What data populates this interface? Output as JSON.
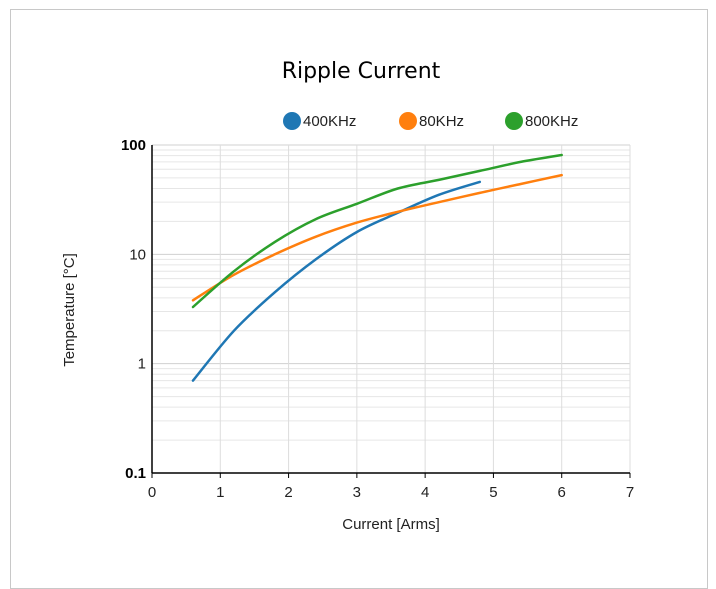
{
  "chart_data": {
    "type": "line",
    "title": "Ripple Current",
    "xlabel": "Current [Arms]",
    "ylabel": "Temperature [°C]",
    "xlim": [
      0,
      7
    ],
    "ylim": [
      0.1,
      100
    ],
    "yscale": "log",
    "grid": true,
    "legend_position": "top",
    "x_ticks": [
      "0",
      "1",
      "2",
      "3",
      "4",
      "5",
      "6",
      "7"
    ],
    "y_ticks": [
      "0.1",
      "1",
      "10",
      "100"
    ],
    "series": [
      {
        "name": "400KHz",
        "color": "#1f77b4",
        "points": [
          [
            0.6,
            0.7
          ],
          [
            1.2,
            2.0
          ],
          [
            1.8,
            4.5
          ],
          [
            2.4,
            9.0
          ],
          [
            3.0,
            16.0
          ],
          [
            3.6,
            24.0
          ],
          [
            4.2,
            35.0
          ],
          [
            4.8,
            46.0
          ]
        ]
      },
      {
        "name": "80KHz",
        "color": "#ff7f0e",
        "points": [
          [
            0.6,
            3.8
          ],
          [
            1.2,
            6.5
          ],
          [
            1.8,
            10.0
          ],
          [
            2.4,
            14.5
          ],
          [
            3.0,
            19.5
          ],
          [
            3.6,
            24.5
          ],
          [
            4.2,
            30.0
          ],
          [
            4.8,
            36.5
          ],
          [
            5.4,
            44.0
          ],
          [
            6.0,
            53.0
          ]
        ]
      },
      {
        "name": "800KHz",
        "color": "#2ca02c",
        "points": [
          [
            0.6,
            3.3
          ],
          [
            1.2,
            7.0
          ],
          [
            1.8,
            13.0
          ],
          [
            2.4,
            21.0
          ],
          [
            3.0,
            29.0
          ],
          [
            3.6,
            40.0
          ],
          [
            4.2,
            48.0
          ],
          [
            4.8,
            58.0
          ],
          [
            5.4,
            70.0
          ],
          [
            6.0,
            81.0
          ]
        ]
      }
    ]
  }
}
